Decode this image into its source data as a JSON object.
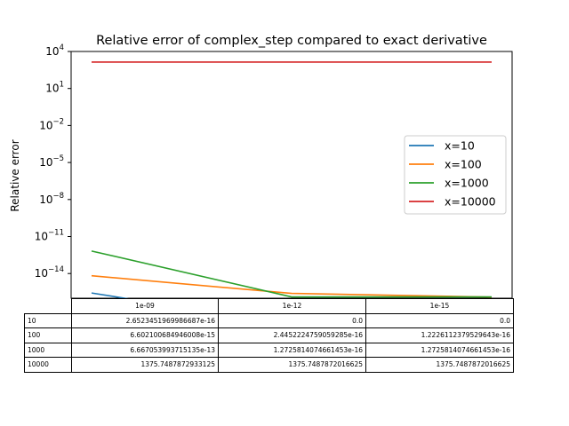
{
  "chart_data": {
    "type": "line",
    "title": "Relative error of complex_step compared to exact derivative",
    "xlabel": "",
    "ylabel": "Relative error",
    "yscale": "log",
    "ylim": [
      1e-16,
      10000.0
    ],
    "ytick_values": [
      10000.0,
      10,
      0.01,
      1e-05,
      1e-08,
      1e-11,
      1e-14
    ],
    "ytick_labels": [
      {
        "base": "10",
        "exp": "4"
      },
      {
        "base": "10",
        "exp": "1"
      },
      {
        "base": "10",
        "exp": "−2"
      },
      {
        "base": "10",
        "exp": "−5"
      },
      {
        "base": "10",
        "exp": "−8"
      },
      {
        "base": "10",
        "exp": "−11"
      },
      {
        "base": "10",
        "exp": "−14"
      }
    ],
    "grid": false,
    "legend_position": "center-right",
    "categories": [
      "1e-09",
      "1e-12",
      "1e-15"
    ],
    "series": [
      {
        "name": "x=10",
        "color": "#1f77b4",
        "values": [
          2.6523451969986687e-16,
          0.0,
          0.0
        ]
      },
      {
        "name": "x=100",
        "color": "#ff7f0e",
        "values": [
          6.602100684946008e-15,
          2.4452224759059285e-16,
          1.2226112379529643e-16
        ]
      },
      {
        "name": "x=1000",
        "color": "#2ca02c",
        "values": [
          6.667053993715135e-13,
          1.2725814074661453e-16,
          1.2725814074661453e-16
        ]
      },
      {
        "name": "x=10000",
        "color": "#d62728",
        "values": [
          1375.7487872933125,
          1375.7487872016625,
          1375.7487872016625
        ]
      }
    ],
    "table": {
      "col_labels": [
        "1e-09",
        "1e-12",
        "1e-15"
      ],
      "row_labels": [
        "10",
        "100",
        "1000",
        "10000"
      ],
      "cells": [
        [
          "2.6523451969986687e-16",
          "0.0",
          "0.0"
        ],
        [
          "6.602100684946008e-15",
          "2.4452224759059285e-16",
          "1.2226112379529643e-16"
        ],
        [
          "6.667053993715135e-13",
          "1.2725814074661453e-16",
          "1.2725814074661453e-16"
        ],
        [
          "1375.7487872933125",
          "1375.7487872016625",
          "1375.7487872016625"
        ]
      ]
    }
  }
}
